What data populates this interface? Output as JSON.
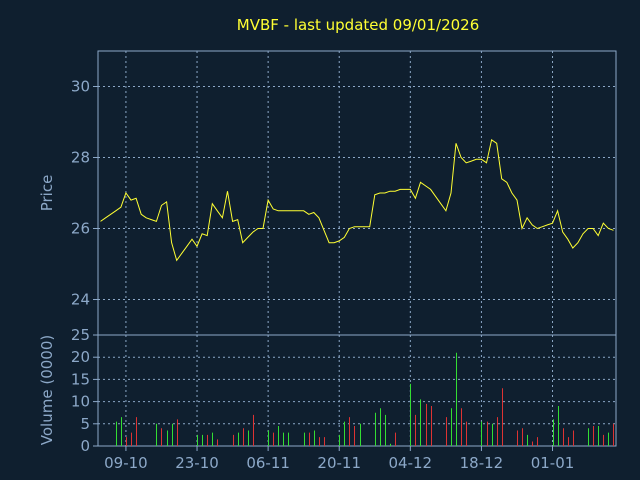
{
  "chart_data": {
    "type": "line",
    "title": "MVBF - last updated 09/01/2026",
    "colors": {
      "background": "#0f1f2f",
      "axis": "#8ca8c8",
      "price_line": "#ffff33",
      "volume_up": "#33dd33",
      "volume_down": "#dd3333",
      "title": "#ffff33"
    },
    "price_panel": {
      "ylabel": "Price",
      "ylim": [
        23.0,
        31.0
      ],
      "yticks": [
        "24",
        "26",
        "28",
        "30"
      ],
      "ytick_values": [
        24,
        26,
        28,
        30
      ],
      "grid": true
    },
    "volume_panel": {
      "ylabel": "Volume (0000)",
      "ylim": [
        0,
        25
      ],
      "yticks": [
        "0",
        "5",
        "10",
        "15",
        "20",
        "25"
      ],
      "ytick_values": [
        0,
        5,
        10,
        15,
        20,
        25
      ],
      "grid": true
    },
    "x_ticks": [
      {
        "label": "09-10",
        "index": 5
      },
      {
        "label": "23-10",
        "index": 19
      },
      {
        "label": "06-11",
        "index": 33
      },
      {
        "label": "20-11",
        "index": 47
      },
      {
        "label": "04-12",
        "index": 61
      },
      {
        "label": "18-12",
        "index": 75
      },
      {
        "label": "01-01",
        "index": 89
      }
    ],
    "x_count": 102,
    "price": [
      26.2,
      26.3,
      26.4,
      26.5,
      26.6,
      27.0,
      26.8,
      26.85,
      26.4,
      26.3,
      26.25,
      26.2,
      26.65,
      26.75,
      25.6,
      25.1,
      25.3,
      25.5,
      25.7,
      25.5,
      25.85,
      25.8,
      26.7,
      26.5,
      26.3,
      27.05,
      26.2,
      26.25,
      25.6,
      25.75,
      25.9,
      26.0,
      26.0,
      26.8,
      26.55,
      26.5,
      26.5,
      26.5,
      26.5,
      26.5,
      26.5,
      26.4,
      26.45,
      26.3,
      25.95,
      25.6,
      25.6,
      25.65,
      25.75,
      26.0,
      26.05,
      26.05,
      26.05,
      26.05,
      26.95,
      27.0,
      27.0,
      27.05,
      27.05,
      27.1,
      27.1,
      27.1,
      26.85,
      27.3,
      27.2,
      27.1,
      26.9,
      26.7,
      26.5,
      27.0,
      28.4,
      28.0,
      27.85,
      27.9,
      27.95,
      27.95,
      27.85,
      28.5,
      28.4,
      27.4,
      27.3,
      27.0,
      26.8,
      26.0,
      26.3,
      26.1,
      26.0,
      26.05,
      26.1,
      26.15,
      26.5,
      25.9,
      25.7,
      25.45,
      25.6,
      25.85,
      26.0,
      26.0,
      25.8,
      26.15,
      26.0,
      25.95
    ],
    "volume": [
      0,
      0,
      0,
      5.5,
      6.5,
      2.0,
      3.0,
      6.5,
      0,
      0,
      0,
      5.0,
      4.0,
      3.5,
      5.0,
      6.0,
      0,
      0,
      0,
      2.5,
      2.5,
      2.5,
      3.0,
      1.5,
      0,
      0,
      2.5,
      3.0,
      4.0,
      3.5,
      7.0,
      0,
      0,
      3.5,
      3.0,
      4.5,
      3.0,
      3.0,
      0,
      0,
      3.0,
      3.0,
      3.5,
      2.0,
      2.0,
      0,
      0,
      2.5,
      5.5,
      6.5,
      4.5,
      5.0,
      0,
      0,
      7.5,
      8.5,
      7.0,
      0.5,
      3.0,
      0,
      0,
      14.0,
      7.0,
      10.5,
      9.5,
      9.0,
      0,
      0,
      6.5,
      8.5,
      21.0,
      8.5,
      5.5,
      0,
      0,
      5.5,
      5.5,
      5.0,
      6.5,
      13.0,
      0,
      0,
      3.5,
      4.0,
      2.5,
      1.0,
      2.0,
      0,
      0,
      6.0,
      9.0,
      4.0,
      2.0,
      3.5,
      0,
      0,
      4.0,
      4.5,
      4.5,
      2.5,
      3.0,
      5.0
    ],
    "volume_direction": [
      "u",
      "u",
      "u",
      "u",
      "u",
      "d",
      "d",
      "d",
      "d",
      "d",
      "d",
      "u",
      "d",
      "u",
      "u",
      "d",
      "d",
      "d",
      "u",
      "u",
      "u",
      "d",
      "u",
      "d",
      "d",
      "u",
      "d",
      "u",
      "d",
      "u",
      "d",
      "u",
      "u",
      "u",
      "d",
      "u",
      "u",
      "u",
      "u",
      "u",
      "u",
      "d",
      "u",
      "d",
      "d",
      "d",
      "d",
      "u",
      "u",
      "d",
      "d",
      "u",
      "u",
      "u",
      "u",
      "u",
      "u",
      "u",
      "d",
      "u",
      "u",
      "u",
      "d",
      "u",
      "d",
      "d",
      "d",
      "d",
      "d",
      "u",
      "u",
      "d",
      "d",
      "d",
      "u",
      "u",
      "d",
      "u",
      "d",
      "d",
      "d",
      "d",
      "d",
      "d",
      "u",
      "d",
      "d",
      "d",
      "u",
      "u",
      "u",
      "d",
      "d",
      "d",
      "u",
      "u",
      "u",
      "d",
      "u",
      "d",
      "u",
      "d"
    ]
  }
}
